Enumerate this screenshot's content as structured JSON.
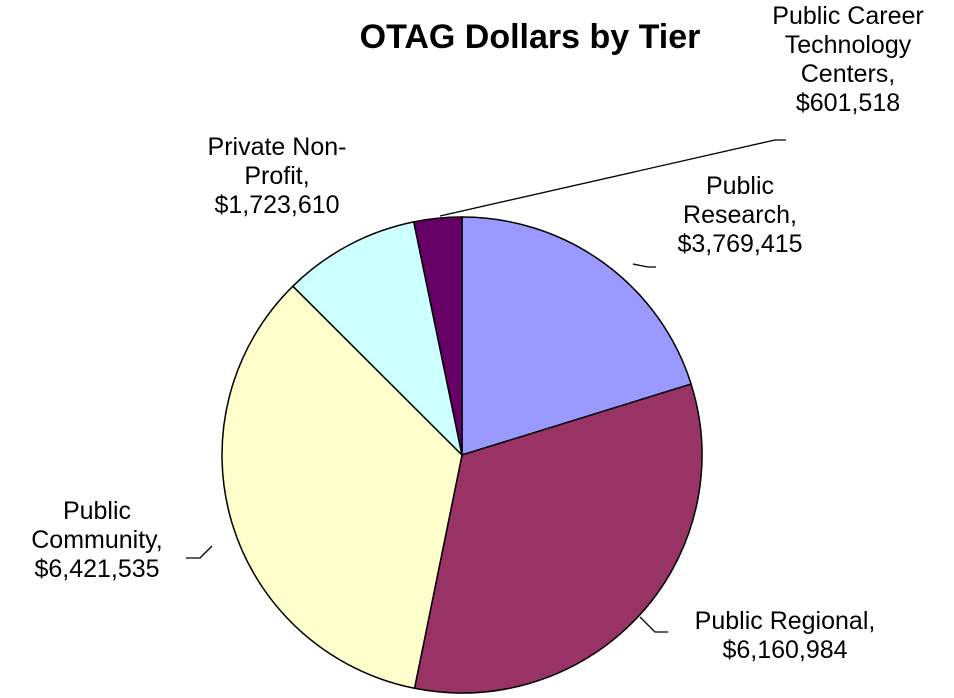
{
  "chart_data": {
    "type": "pie",
    "title": "OTAG Dollars by Tier",
    "categories": [
      "Public Research,",
      "Public Regional,",
      "Public Community,",
      "Private Non-Profit,",
      "Public Career Technology Centers,"
    ],
    "values": [
      3769415,
      6160984,
      6421535,
      1723610,
      601518
    ],
    "value_labels": [
      "$3,769,415",
      "$6,160,984",
      "$6,421,535",
      "$1,723,610",
      "$601,518"
    ],
    "colors": [
      "#9999ff",
      "#993366",
      "#ffffcc",
      "#ccffff",
      "#660066"
    ]
  }
}
